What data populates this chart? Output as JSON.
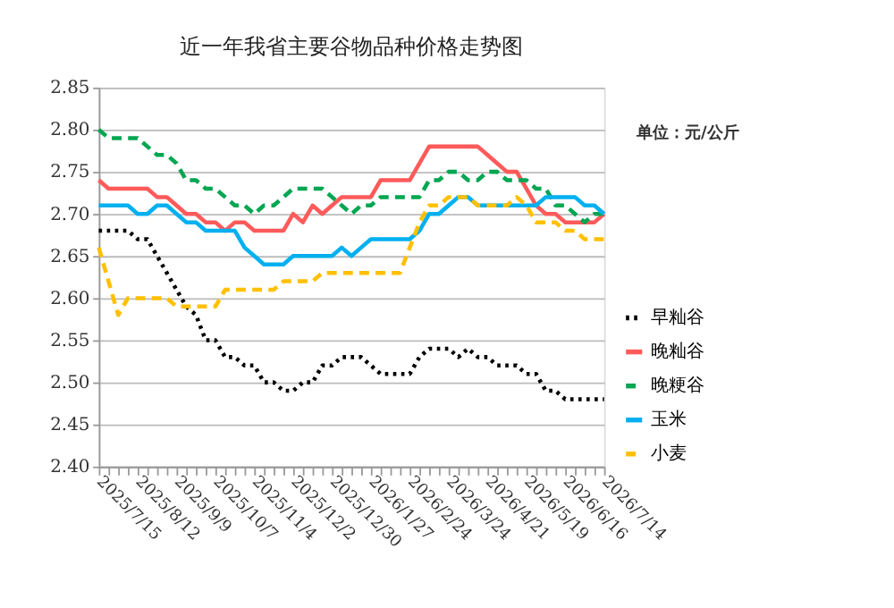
{
  "chart_data": {
    "type": "line",
    "title": "近一年我省主要谷物品种价格走势图",
    "annotations": [
      "单位：元/公斤"
    ],
    "categories": [
      "2025/7/15",
      null,
      null,
      null,
      "2025/8/12",
      null,
      null,
      null,
      "2025/9/9",
      null,
      null,
      null,
      "2025/10/7",
      null,
      null,
      null,
      "2025/11/4",
      null,
      null,
      null,
      "2025/12/2",
      null,
      null,
      null,
      "2025/12/30",
      null,
      null,
      null,
      "2026/1/27",
      null,
      null,
      null,
      "2026/2/24",
      null,
      null,
      null,
      "2026/3/24",
      null,
      null,
      null,
      "2026/4/21",
      null,
      null,
      null,
      "2026/5/19",
      null,
      null,
      null,
      "2026/6/16",
      null,
      null,
      null,
      "2026/7/14"
    ],
    "ylim": [
      2.4,
      2.85
    ],
    "yticks": [
      {
        "value": 2.4,
        "label": "2.40"
      },
      {
        "value": 2.45,
        "label": "2.45"
      },
      {
        "value": 2.5,
        "label": "2.50"
      },
      {
        "value": 2.55,
        "label": "2.55"
      },
      {
        "value": 2.6,
        "label": "2.60"
      },
      {
        "value": 2.65,
        "label": "2.65"
      },
      {
        "value": 2.7,
        "label": "2.70"
      },
      {
        "value": 2.75,
        "label": "2.75"
      },
      {
        "value": 2.8,
        "label": "2.80"
      },
      {
        "value": 2.85,
        "label": "2.85"
      }
    ],
    "grid": "y",
    "legend": "right",
    "marker": "none",
    "series": [
      {
        "name": "早籼谷",
        "color": "#000000",
        "line_style": "dotted",
        "values": [
          2.68,
          2.68,
          2.68,
          2.68,
          2.67,
          2.67,
          2.65,
          2.63,
          2.61,
          2.59,
          2.58,
          2.55,
          2.55,
          2.53,
          2.53,
          2.52,
          2.52,
          2.5,
          2.5,
          2.49,
          2.49,
          2.5,
          2.5,
          2.52,
          2.52,
          2.53,
          2.53,
          2.53,
          2.52,
          2.51,
          2.51,
          2.51,
          2.51,
          2.53,
          2.54,
          2.54,
          2.54,
          2.53,
          2.54,
          2.53,
          2.53,
          2.52,
          2.52,
          2.52,
          2.51,
          2.51,
          2.49,
          2.49,
          2.48,
          2.48,
          2.48,
          2.48,
          2.48
        ]
      },
      {
        "name": "晚籼谷",
        "color": "#ff5a5a",
        "line_style": "solid",
        "values": [
          2.74,
          2.73,
          2.73,
          2.73,
          2.73,
          2.73,
          2.72,
          2.72,
          2.71,
          2.7,
          2.7,
          2.69,
          2.69,
          2.68,
          2.69,
          2.69,
          2.68,
          2.68,
          2.68,
          2.68,
          2.7,
          2.69,
          2.71,
          2.7,
          2.71,
          2.72,
          2.72,
          2.72,
          2.72,
          2.74,
          2.74,
          2.74,
          2.74,
          2.76,
          2.78,
          2.78,
          2.78,
          2.78,
          2.78,
          2.78,
          2.77,
          2.76,
          2.75,
          2.75,
          2.73,
          2.71,
          2.7,
          2.7,
          2.69,
          2.69,
          2.69,
          2.69,
          2.7
        ]
      },
      {
        "name": "晚粳谷",
        "color": "#00a651",
        "line_style": "dashed",
        "values": [
          2.8,
          2.79,
          2.79,
          2.79,
          2.79,
          2.78,
          2.77,
          2.77,
          2.76,
          2.74,
          2.74,
          2.73,
          2.73,
          2.72,
          2.71,
          2.71,
          2.7,
          2.71,
          2.71,
          2.72,
          2.73,
          2.73,
          2.73,
          2.73,
          2.72,
          2.71,
          2.7,
          2.71,
          2.71,
          2.72,
          2.72,
          2.72,
          2.72,
          2.72,
          2.74,
          2.74,
          2.75,
          2.75,
          2.74,
          2.74,
          2.75,
          2.75,
          2.74,
          2.74,
          2.74,
          2.73,
          2.73,
          2.71,
          2.71,
          2.7,
          2.69,
          2.7,
          2.7
        ]
      },
      {
        "name": "玉米",
        "color": "#00b0f0",
        "line_style": "solid",
        "values": [
          2.71,
          2.71,
          2.71,
          2.71,
          2.7,
          2.7,
          2.71,
          2.71,
          2.7,
          2.69,
          2.69,
          2.68,
          2.68,
          2.68,
          2.68,
          2.66,
          2.65,
          2.64,
          2.64,
          2.64,
          2.65,
          2.65,
          2.65,
          2.65,
          2.65,
          2.66,
          2.65,
          2.66,
          2.67,
          2.67,
          2.67,
          2.67,
          2.67,
          2.68,
          2.7,
          2.7,
          2.71,
          2.72,
          2.72,
          2.71,
          2.71,
          2.71,
          2.71,
          2.71,
          2.71,
          2.71,
          2.72,
          2.72,
          2.72,
          2.72,
          2.71,
          2.71,
          2.7
        ]
      },
      {
        "name": "小麦",
        "color": "#ffc000",
        "line_style": "dashed",
        "values": [
          2.66,
          2.62,
          2.58,
          2.6,
          2.6,
          2.6,
          2.6,
          2.6,
          2.59,
          2.59,
          2.59,
          2.59,
          2.59,
          2.61,
          2.61,
          2.61,
          2.61,
          2.61,
          2.61,
          2.62,
          2.62,
          2.62,
          2.62,
          2.63,
          2.63,
          2.63,
          2.63,
          2.63,
          2.63,
          2.63,
          2.63,
          2.63,
          2.66,
          2.69,
          2.71,
          2.71,
          2.72,
          2.72,
          2.72,
          2.71,
          2.71,
          2.71,
          2.71,
          2.72,
          2.71,
          2.69,
          2.69,
          2.69,
          2.68,
          2.68,
          2.67,
          2.67,
          2.67
        ]
      }
    ]
  }
}
